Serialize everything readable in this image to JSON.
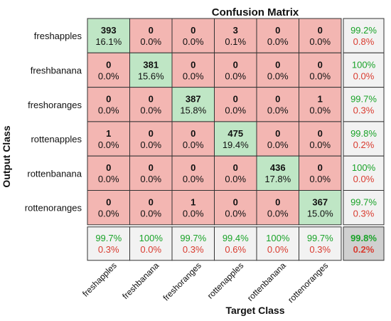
{
  "chart_data": {
    "type": "heatmap",
    "title": "Confusion Matrix",
    "xlabel": "Target Class",
    "ylabel": "Output Class",
    "classes": [
      "freshapples",
      "freshbanana",
      "freshoranges",
      "rottenapples",
      "rottenbanana",
      "rottenoranges"
    ],
    "matrix": [
      [
        393,
        0,
        0,
        3,
        0,
        0
      ],
      [
        0,
        381,
        0,
        0,
        0,
        0
      ],
      [
        0,
        0,
        387,
        0,
        0,
        1
      ],
      [
        1,
        0,
        0,
        475,
        0,
        0
      ],
      [
        0,
        0,
        0,
        0,
        436,
        0
      ],
      [
        0,
        0,
        1,
        0,
        0,
        367
      ]
    ],
    "cell_percent": [
      [
        "16.1%",
        "0.0%",
        "0.0%",
        "0.1%",
        "0.0%",
        "0.0%"
      ],
      [
        "0.0%",
        "15.6%",
        "0.0%",
        "0.0%",
        "0.0%",
        "0.0%"
      ],
      [
        "0.0%",
        "0.0%",
        "15.8%",
        "0.0%",
        "0.0%",
        "0.0%"
      ],
      [
        "0.0%",
        "0.0%",
        "0.0%",
        "19.4%",
        "0.0%",
        "0.0%"
      ],
      [
        "0.0%",
        "0.0%",
        "0.0%",
        "0.0%",
        "17.8%",
        "0.0%"
      ],
      [
        "0.0%",
        "0.0%",
        "0.0%",
        "0.0%",
        "0.0%",
        "15.0%"
      ]
    ],
    "row_summary": [
      {
        "correct": "99.2%",
        "wrong": "0.8%"
      },
      {
        "correct": "100%",
        "wrong": "0.0%"
      },
      {
        "correct": "99.7%",
        "wrong": "0.3%"
      },
      {
        "correct": "99.8%",
        "wrong": "0.2%"
      },
      {
        "correct": "100%",
        "wrong": "0.0%"
      },
      {
        "correct": "99.7%",
        "wrong": "0.3%"
      }
    ],
    "col_summary": [
      {
        "correct": "99.7%",
        "wrong": "0.3%"
      },
      {
        "correct": "100%",
        "wrong": "0.0%"
      },
      {
        "correct": "99.7%",
        "wrong": "0.3%"
      },
      {
        "correct": "99.4%",
        "wrong": "0.6%"
      },
      {
        "correct": "100%",
        "wrong": "0.0%"
      },
      {
        "correct": "99.7%",
        "wrong": "0.3%"
      }
    ],
    "overall": {
      "correct": "99.8%",
      "wrong": "0.2%"
    },
    "colors": {
      "diagonal": "#bfe6c5",
      "off_diagonal": "#f3b6b2",
      "summary": "#f2f2f2",
      "overall": "#d0d0d0",
      "correct_text": "#1aa329",
      "wrong_text": "#d93b2f",
      "grid": "#333333"
    }
  }
}
